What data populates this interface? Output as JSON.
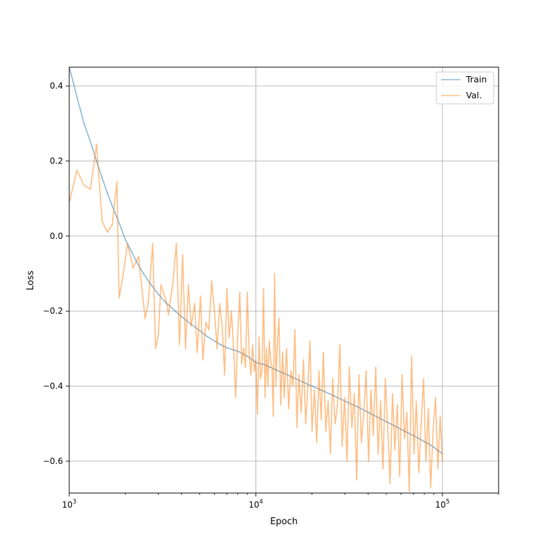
{
  "chart_data": {
    "type": "line",
    "title": "",
    "xlabel": "Epoch",
    "ylabel": "Loss",
    "xscale": "log",
    "xlim": [
      1000,
      200000
    ],
    "ylim": [
      -0.685,
      0.45
    ],
    "grid": true,
    "legend_position": "top-right",
    "x_ticks": [
      {
        "value": 1000,
        "base": "10",
        "exp": "3"
      },
      {
        "value": 10000,
        "base": "10",
        "exp": "4"
      },
      {
        "value": 100000,
        "base": "10",
        "exp": "5"
      }
    ],
    "y_ticks": [
      {
        "value": 0.4,
        "label": "0.4"
      },
      {
        "value": 0.2,
        "label": "0.2"
      },
      {
        "value": 0.0,
        "label": "0.0"
      },
      {
        "value": -0.2,
        "label": "−0.2"
      },
      {
        "value": -0.4,
        "label": "−0.4"
      },
      {
        "value": -0.6,
        "label": "−0.6"
      }
    ],
    "series": [
      {
        "name": "Train",
        "color": "#1f77b4",
        "opacity": 0.5,
        "points": [
          [
            1000,
            0.45
          ],
          [
            1050,
            0.41
          ],
          [
            1100,
            0.37
          ],
          [
            1150,
            0.335
          ],
          [
            1200,
            0.3
          ],
          [
            1260,
            0.27
          ],
          [
            1330,
            0.235
          ],
          [
            1400,
            0.2
          ],
          [
            1500,
            0.155
          ],
          [
            1600,
            0.115
          ],
          [
            1700,
            0.08
          ],
          [
            1800,
            0.05
          ],
          [
            1900,
            0.02
          ],
          [
            2000,
            -0.01
          ],
          [
            2150,
            -0.04
          ],
          [
            2300,
            -0.07
          ],
          [
            2500,
            -0.1
          ],
          [
            2700,
            -0.125
          ],
          [
            3000,
            -0.155
          ],
          [
            3300,
            -0.178
          ],
          [
            3700,
            -0.2
          ],
          [
            4000,
            -0.215
          ],
          [
            4500,
            -0.235
          ],
          [
            5000,
            -0.252
          ],
          [
            5500,
            -0.268
          ],
          [
            6000,
            -0.28
          ],
          [
            6500,
            -0.29
          ],
          [
            7000,
            -0.298
          ],
          [
            8000,
            -0.307
          ],
          [
            9000,
            -0.32
          ],
          [
            10000,
            -0.337
          ],
          [
            11000,
            -0.342
          ],
          [
            12000,
            -0.35
          ],
          [
            13000,
            -0.358
          ],
          [
            14000,
            -0.365
          ],
          [
            16000,
            -0.378
          ],
          [
            18000,
            -0.39
          ],
          [
            20000,
            -0.4
          ],
          [
            23000,
            -0.413
          ],
          [
            26000,
            -0.425
          ],
          [
            30000,
            -0.44
          ],
          [
            35000,
            -0.455
          ],
          [
            40000,
            -0.47
          ],
          [
            45000,
            -0.483
          ],
          [
            50000,
            -0.495
          ],
          [
            55000,
            -0.505
          ],
          [
            60000,
            -0.515
          ],
          [
            65000,
            -0.524
          ],
          [
            70000,
            -0.532
          ],
          [
            75000,
            -0.54
          ],
          [
            80000,
            -0.548
          ],
          [
            85000,
            -0.555
          ],
          [
            90000,
            -0.563
          ],
          [
            95000,
            -0.572
          ],
          [
            100000,
            -0.58
          ]
        ]
      },
      {
        "name": "Val.",
        "color": "#ff7f0e",
        "opacity": 0.5,
        "points": [
          [
            1000,
            0.09
          ],
          [
            1100,
            0.175
          ],
          [
            1200,
            0.135
          ],
          [
            1300,
            0.125
          ],
          [
            1400,
            0.245
          ],
          [
            1500,
            0.04
          ],
          [
            1600,
            0.01
          ],
          [
            1700,
            0.03
          ],
          [
            1800,
            0.145
          ],
          [
            1850,
            -0.165
          ],
          [
            1950,
            -0.1
          ],
          [
            2050,
            -0.02
          ],
          [
            2200,
            -0.085
          ],
          [
            2350,
            -0.055
          ],
          [
            2550,
            -0.22
          ],
          [
            2650,
            -0.18
          ],
          [
            2800,
            -0.02
          ],
          [
            2900,
            -0.3
          ],
          [
            3000,
            -0.265
          ],
          [
            3100,
            -0.13
          ],
          [
            3300,
            -0.17
          ],
          [
            3400,
            -0.21
          ],
          [
            3600,
            -0.12
          ],
          [
            3750,
            -0.02
          ],
          [
            3900,
            -0.29
          ],
          [
            4050,
            -0.05
          ],
          [
            4200,
            -0.3
          ],
          [
            4350,
            -0.13
          ],
          [
            4500,
            -0.24
          ],
          [
            4700,
            -0.18
          ],
          [
            4850,
            -0.31
          ],
          [
            5050,
            -0.16
          ],
          [
            5200,
            -0.33
          ],
          [
            5400,
            -0.23
          ],
          [
            5600,
            -0.25
          ],
          [
            5800,
            -0.12
          ],
          [
            6000,
            -0.2
          ],
          [
            6200,
            -0.3
          ],
          [
            6400,
            -0.18
          ],
          [
            6600,
            -0.24
          ],
          [
            6800,
            -0.37
          ],
          [
            7000,
            -0.14
          ],
          [
            7200,
            -0.27
          ],
          [
            7400,
            -0.2
          ],
          [
            7600,
            -0.3
          ],
          [
            7800,
            -0.43
          ],
          [
            8000,
            -0.26
          ],
          [
            8200,
            -0.15
          ],
          [
            8400,
            -0.34
          ],
          [
            8600,
            -0.3
          ],
          [
            8800,
            -0.35
          ],
          [
            9000,
            -0.15
          ],
          [
            9200,
            -0.31
          ],
          [
            9400,
            -0.37
          ],
          [
            9600,
            -0.29
          ],
          [
            9800,
            -0.36
          ],
          [
            10000,
            -0.33
          ],
          [
            10200,
            -0.475
          ],
          [
            10400,
            -0.27
          ],
          [
            10600,
            -0.38
          ],
          [
            10800,
            -0.36
          ],
          [
            11000,
            -0.14
          ],
          [
            11200,
            -0.43
          ],
          [
            11400,
            -0.3
          ],
          [
            11600,
            -0.4
          ],
          [
            11800,
            -0.28
          ],
          [
            12000,
            -0.33
          ],
          [
            12200,
            -0.35
          ],
          [
            12400,
            -0.48
          ],
          [
            12600,
            -0.1
          ],
          [
            12800,
            -0.4
          ],
          [
            13000,
            -0.3
          ],
          [
            13300,
            -0.22
          ],
          [
            13600,
            -0.45
          ],
          [
            13900,
            -0.31
          ],
          [
            14200,
            -0.43
          ],
          [
            14600,
            -0.3
          ],
          [
            15000,
            -0.46
          ],
          [
            15400,
            -0.36
          ],
          [
            15800,
            -0.4
          ],
          [
            16200,
            -0.25
          ],
          [
            16600,
            -0.51
          ],
          [
            17000,
            -0.37
          ],
          [
            17500,
            -0.47
          ],
          [
            18000,
            -0.33
          ],
          [
            18500,
            -0.5
          ],
          [
            19000,
            -0.4
          ],
          [
            19500,
            -0.28
          ],
          [
            20000,
            -0.52
          ],
          [
            20600,
            -0.41
          ],
          [
            21200,
            -0.55
          ],
          [
            21800,
            -0.36
          ],
          [
            22400,
            -0.49
          ],
          [
            23000,
            -0.31
          ],
          [
            23700,
            -0.52
          ],
          [
            24400,
            -0.44
          ],
          [
            25100,
            -0.58
          ],
          [
            25800,
            -0.38
          ],
          [
            26600,
            -0.5
          ],
          [
            27400,
            -0.45
          ],
          [
            28200,
            -0.29
          ],
          [
            29000,
            -0.56
          ],
          [
            29900,
            -0.43
          ],
          [
            30800,
            -0.6
          ],
          [
            31700,
            -0.35
          ],
          [
            32700,
            -0.51
          ],
          [
            33700,
            -0.42
          ],
          [
            34700,
            -0.65
          ],
          [
            35700,
            -0.37
          ],
          [
            36800,
            -0.55
          ],
          [
            37900,
            -0.47
          ],
          [
            39000,
            -0.36
          ],
          [
            40200,
            -0.6
          ],
          [
            41400,
            -0.41
          ],
          [
            42600,
            -0.53
          ],
          [
            43900,
            -0.35
          ],
          [
            45200,
            -0.58
          ],
          [
            46600,
            -0.44
          ],
          [
            48000,
            -0.62
          ],
          [
            49400,
            -0.38
          ],
          [
            50900,
            -0.51
          ],
          [
            52400,
            -0.66
          ],
          [
            54000,
            -0.42
          ],
          [
            55600,
            -0.57
          ],
          [
            57300,
            -0.45
          ],
          [
            59000,
            -0.64
          ],
          [
            60800,
            -0.37
          ],
          [
            62600,
            -0.54
          ],
          [
            64500,
            -0.47
          ],
          [
            66400,
            -0.68
          ],
          [
            68400,
            -0.32
          ],
          [
            70400,
            -0.58
          ],
          [
            72500,
            -0.44
          ],
          [
            74700,
            -0.63
          ],
          [
            76900,
            -0.5
          ],
          [
            79200,
            -0.38
          ],
          [
            81600,
            -0.6
          ],
          [
            84000,
            -0.46
          ],
          [
            86500,
            -0.67
          ],
          [
            89100,
            -0.52
          ],
          [
            91800,
            -0.43
          ],
          [
            94500,
            -0.62
          ],
          [
            97300,
            -0.48
          ],
          [
            100000,
            -0.6
          ]
        ]
      }
    ]
  }
}
